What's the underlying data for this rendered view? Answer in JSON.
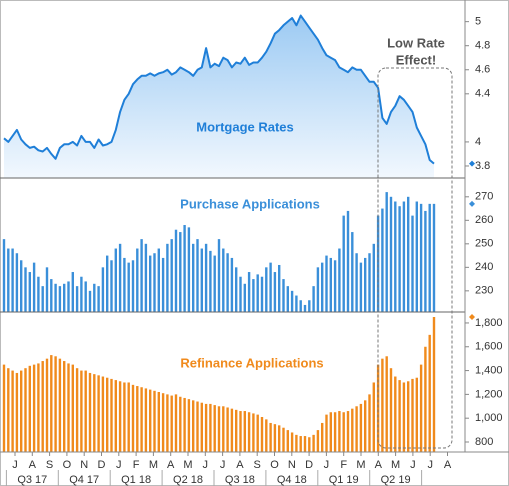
{
  "chart_data": [
    {
      "type": "area",
      "title": "Mortgage Rates",
      "color": "#1f7fd8",
      "ylim": [
        3.7,
        5.18
      ],
      "yticks": [
        5,
        4.8,
        4.6,
        4.4,
        4,
        3.8
      ],
      "values": [
        4.03,
        4.0,
        4.05,
        4.1,
        4.02,
        3.98,
        3.95,
        3.96,
        3.93,
        3.92,
        3.95,
        3.9,
        3.86,
        3.95,
        3.98,
        3.98,
        4.0,
        3.97,
        4.05,
        4.0,
        4.0,
        3.95,
        4.02,
        3.97,
        3.98,
        4.0,
        4.1,
        4.25,
        4.35,
        4.4,
        4.48,
        4.52,
        4.55,
        4.55,
        4.57,
        4.55,
        4.57,
        4.58,
        4.6,
        4.56,
        4.58,
        4.62,
        4.6,
        4.58,
        4.55,
        4.6,
        4.62,
        4.78,
        4.62,
        4.65,
        4.63,
        4.7,
        4.68,
        4.62,
        4.66,
        4.65,
        4.7,
        4.64,
        4.66,
        4.66,
        4.7,
        4.75,
        4.82,
        4.9,
        4.93,
        4.97,
        5.0,
        5.03,
        4.97,
        5.05,
        5.0,
        4.95,
        4.9,
        4.85,
        4.78,
        4.72,
        4.7,
        4.68,
        4.62,
        4.6,
        4.58,
        4.62,
        4.6,
        4.6,
        4.55,
        4.5,
        4.5,
        4.45,
        4.2,
        4.15,
        4.25,
        4.3,
        4.38,
        4.35,
        4.3,
        4.25,
        4.12,
        4.05,
        3.98,
        3.85,
        3.82
      ]
    },
    {
      "type": "bar",
      "title": "Purchase Applications",
      "color": "#3a8fd9",
      "ylim": [
        221,
        278
      ],
      "yticks": [
        270,
        260,
        250,
        240,
        230
      ],
      "values": [
        252,
        248,
        248,
        246,
        243,
        240,
        238,
        242,
        236,
        232,
        240,
        235,
        233,
        232,
        233,
        234,
        238,
        232,
        236,
        234,
        230,
        233,
        232,
        240,
        245,
        243,
        248,
        250,
        244,
        242,
        243,
        248,
        252,
        250,
        245,
        246,
        248,
        244,
        250,
        252,
        256,
        255,
        258,
        257,
        250,
        252,
        248,
        250,
        247,
        245,
        252,
        248,
        246,
        244,
        240,
        236,
        233,
        238,
        235,
        237,
        236,
        240,
        242,
        238,
        241,
        235,
        232,
        230,
        228,
        226,
        224,
        226,
        232,
        240,
        242,
        245,
        244,
        243,
        248,
        262,
        264,
        255,
        246,
        242,
        244,
        246,
        250,
        262,
        265,
        272,
        270,
        268,
        266,
        268,
        270,
        262,
        268,
        267,
        264,
        267,
        267
      ]
    },
    {
      "type": "bar",
      "title": "Refinance Applications",
      "color": "#f08a1c",
      "ylim": [
        716,
        1892
      ],
      "yticks": [
        {
          "value": 1800,
          "label": "1,800"
        },
        {
          "value": 1600,
          "label": "1,600"
        },
        {
          "value": 1400,
          "label": "1,400"
        },
        {
          "value": 1200,
          "label": "1,200"
        },
        {
          "value": 1000,
          "label": "1,000"
        },
        800
      ],
      "values": [
        1450,
        1420,
        1400,
        1380,
        1400,
        1420,
        1440,
        1450,
        1460,
        1480,
        1500,
        1530,
        1520,
        1500,
        1480,
        1460,
        1450,
        1420,
        1400,
        1400,
        1380,
        1370,
        1360,
        1350,
        1340,
        1330,
        1320,
        1310,
        1300,
        1300,
        1280,
        1270,
        1260,
        1250,
        1240,
        1230,
        1220,
        1210,
        1200,
        1190,
        1200,
        1180,
        1170,
        1160,
        1150,
        1140,
        1130,
        1120,
        1120,
        1110,
        1100,
        1100,
        1090,
        1080,
        1070,
        1060,
        1060,
        1050,
        1040,
        1030,
        1010,
        990,
        960,
        950,
        940,
        920,
        900,
        880,
        860,
        850,
        850,
        840,
        860,
        900,
        960,
        1030,
        1050,
        1050,
        1060,
        1050,
        1060,
        1080,
        1100,
        1120,
        1150,
        1200,
        1300,
        1450,
        1500,
        1520,
        1420,
        1350,
        1320,
        1300,
        1310,
        1330,
        1340,
        1450,
        1600,
        1700,
        1850
      ]
    }
  ],
  "x_axis": {
    "months": [
      "J",
      "A",
      "S",
      "O",
      "N",
      "D",
      "J",
      "F",
      "M",
      "A",
      "M",
      "J",
      "J",
      "A",
      "S",
      "O",
      "N",
      "D",
      "J",
      "F",
      "M",
      "A",
      "M",
      "J",
      "J",
      "A"
    ],
    "quarters": [
      "Q3 17",
      "Q4 17",
      "Q1 18",
      "Q2 18",
      "Q3 18",
      "Q4 18",
      "Q1 19",
      "Q2 19"
    ]
  },
  "annotation": [
    "Low Rate",
    "Effect!"
  ]
}
